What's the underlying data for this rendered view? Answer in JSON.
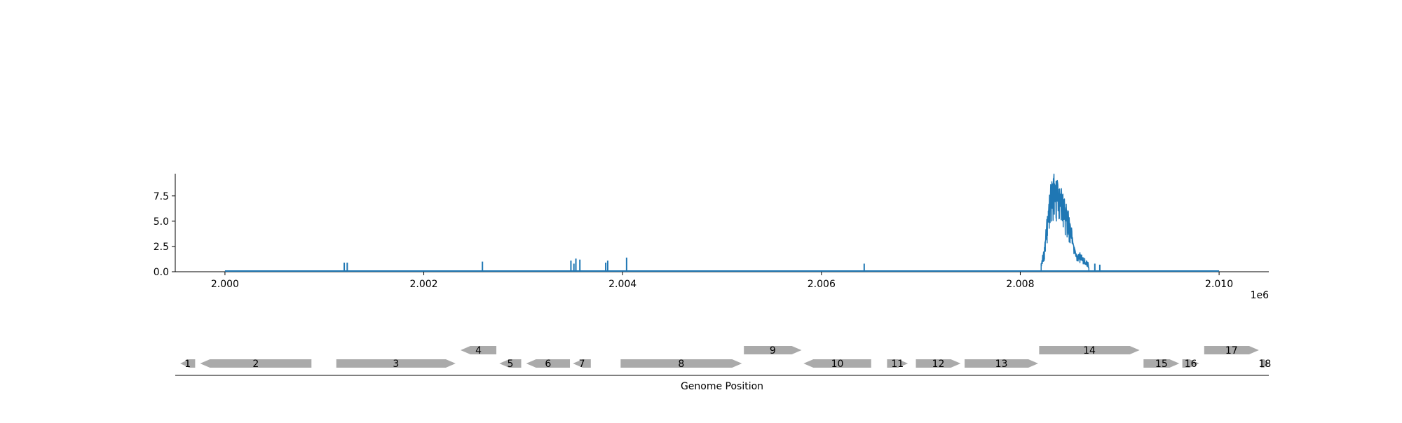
{
  "chart_data": [
    {
      "type": "line",
      "title": "",
      "xlabel": "",
      "ylabel": "",
      "x_offset_label": "1e6",
      "xlim": [
        1999500,
        2010500
      ],
      "ylim": [
        0,
        9.7
      ],
      "xticks": [
        2000000,
        2002000,
        2004000,
        2006000,
        2008000,
        2010000
      ],
      "xtick_labels": [
        "2.000",
        "2.002",
        "2.004",
        "2.006",
        "2.008",
        "2.010"
      ],
      "yticks": [
        0,
        2.5,
        5,
        7.5
      ],
      "ytick_labels": [
        "0.0",
        "2.5",
        "5.0",
        "7.5"
      ],
      "grid": false,
      "line_color": "#1f77b4",
      "x_range": [
        2000000,
        2010000
      ],
      "spikes": [
        {
          "x": 2001200,
          "y": 0.9
        },
        {
          "x": 2001230,
          "y": 0.9
        },
        {
          "x": 2002590,
          "y": 1.0
        },
        {
          "x": 2003480,
          "y": 1.1
        },
        {
          "x": 2003510,
          "y": 0.8
        },
        {
          "x": 2003530,
          "y": 1.3
        },
        {
          "x": 2003570,
          "y": 1.2
        },
        {
          "x": 2003830,
          "y": 0.9
        },
        {
          "x": 2003850,
          "y": 1.1
        },
        {
          "x": 2004040,
          "y": 1.4
        },
        {
          "x": 2006430,
          "y": 0.8
        },
        {
          "x": 2008750,
          "y": 0.8
        },
        {
          "x": 2008800,
          "y": 0.7
        }
      ],
      "peak_region": {
        "x": [
          2008210,
          2008240,
          2008270,
          2008300,
          2008330,
          2008360,
          2008390,
          2008420,
          2008450,
          2008480,
          2008510,
          2008540,
          2008570,
          2008600,
          2008630,
          2008660,
          2008690
        ],
        "y": [
          0.8,
          2.0,
          5.0,
          7.7,
          8.9,
          8.5,
          7.9,
          7.3,
          6.5,
          5.8,
          4.3,
          2.6,
          1.3,
          1.6,
          1.3,
          0.9,
          0.6
        ]
      }
    },
    {
      "type": "gene_map",
      "title": "",
      "xlabel": "Genome Position",
      "xlim": [
        1999500,
        2010500
      ],
      "genes": [
        {
          "label": "1",
          "start": 1999550,
          "end": 1999700,
          "strand": "-",
          "row": 0
        },
        {
          "label": "2",
          "start": 1999750,
          "end": 2000870,
          "strand": "-",
          "row": 0
        },
        {
          "label": "3",
          "start": 2001120,
          "end": 2002320,
          "strand": "+",
          "row": 0
        },
        {
          "label": "4",
          "start": 2002370,
          "end": 2002730,
          "strand": "-",
          "row": 1
        },
        {
          "label": "5",
          "start": 2002760,
          "end": 2002980,
          "strand": "-",
          "row": 0
        },
        {
          "label": "6",
          "start": 2003030,
          "end": 2003470,
          "strand": "-",
          "row": 0
        },
        {
          "label": "7",
          "start": 2003500,
          "end": 2003680,
          "strand": "-",
          "row": 0
        },
        {
          "label": "8",
          "start": 2003980,
          "end": 2005200,
          "strand": "+",
          "row": 0
        },
        {
          "label": "9",
          "start": 2005220,
          "end": 2005800,
          "strand": "+",
          "row": 1
        },
        {
          "label": "10",
          "start": 2005820,
          "end": 2006500,
          "strand": "-",
          "row": 0
        },
        {
          "label": "11",
          "start": 2006660,
          "end": 2006870,
          "strand": "+",
          "row": 0
        },
        {
          "label": "12",
          "start": 2006950,
          "end": 2007400,
          "strand": "+",
          "row": 0
        },
        {
          "label": "13",
          "start": 2007440,
          "end": 2008180,
          "strand": "+",
          "row": 0
        },
        {
          "label": "14",
          "start": 2008190,
          "end": 2009200,
          "strand": "+",
          "row": 1
        },
        {
          "label": "15",
          "start": 2009240,
          "end": 2009600,
          "strand": "+",
          "row": 0
        },
        {
          "label": "16",
          "start": 2009630,
          "end": 2009800,
          "strand": "+",
          "row": 0
        },
        {
          "label": "17",
          "start": 2009850,
          "end": 2010400,
          "strand": "+",
          "row": 1
        },
        {
          "label": "18",
          "start": 2010420,
          "end": 2010550,
          "strand": "+",
          "row": 0
        }
      ],
      "gene_color": "#aaaaaa"
    }
  ]
}
